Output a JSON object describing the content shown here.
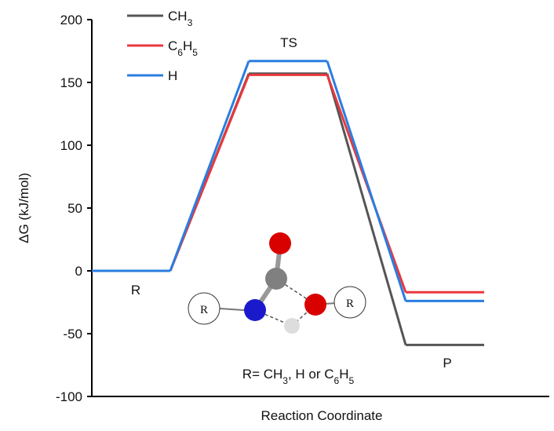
{
  "chart_data": {
    "type": "energy-profile",
    "categories": [
      "R",
      "TS",
      "P"
    ],
    "series": [
      {
        "name": "CH3",
        "color": "#555555",
        "values": [
          0,
          157,
          -59
        ]
      },
      {
        "name": "C6H5",
        "color": "#e8383d",
        "values": [
          0,
          156,
          -17
        ]
      },
      {
        "name": "H",
        "color": "#2a7de1",
        "values": [
          0,
          167,
          -24
        ]
      }
    ],
    "ylabel": "ΔG (kJ/mol)",
    "xlabel": "Reaction Coordinate",
    "ylim": [
      -100,
      200
    ],
    "yticks": [
      -100,
      -50,
      0,
      50,
      100,
      150,
      200
    ],
    "legend": "upper-left",
    "annotation": "R= CH3, H or C6H5",
    "molecule_labels": [
      "R",
      "R"
    ]
  }
}
